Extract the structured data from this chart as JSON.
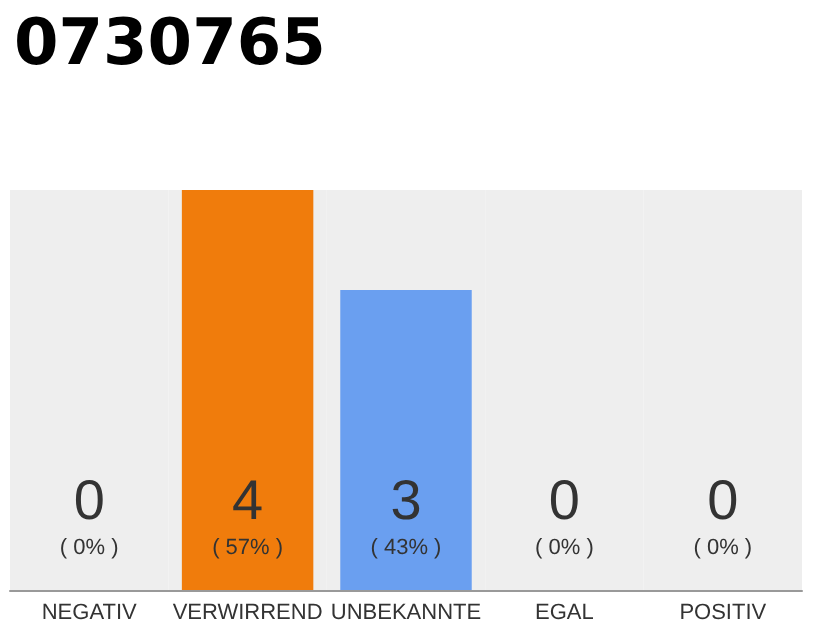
{
  "chart_data": {
    "type": "bar",
    "title": "0730765",
    "categories": [
      "NEGATIV",
      "VERWIRREND",
      "UNBEKANNTE",
      "EGAL",
      "POSITIV"
    ],
    "values": [
      0,
      4,
      3,
      0,
      0
    ],
    "colors": [
      "#6a9ff0",
      "#f07c0c",
      "#6a9ff0",
      "#6a9ff0",
      "#6a9ff0"
    ],
    "value_labels": [
      "0\n( 0% )",
      "4\n( 57% )",
      "3\n( 43% )",
      "0\n( 0% )",
      "0\n( 0% )"
    ],
    "bands": [
      {
        "axis": "x",
        "from": "NEGATIV",
        "to": "NEGATIV",
        "color": "#eeeeee"
      },
      {
        "axis": "x",
        "from": "VERWIRREND",
        "to": "VERWIRREND",
        "color": "#eeeeee"
      },
      {
        "axis": "x",
        "from": "UNBEKANNTE",
        "to": "UNBEKANNTE",
        "color": "#eeeeee"
      },
      {
        "axis": "x",
        "from": "EGAL",
        "to": "EGAL",
        "color": "#eeeeee"
      },
      {
        "axis": "x",
        "from": "POSITIV",
        "to": "POSITIV",
        "color": "#eeeeee"
      }
    ],
    "ylim": [
      0,
      4
    ],
    "tick_labels": "x",
    "grid": false
  }
}
